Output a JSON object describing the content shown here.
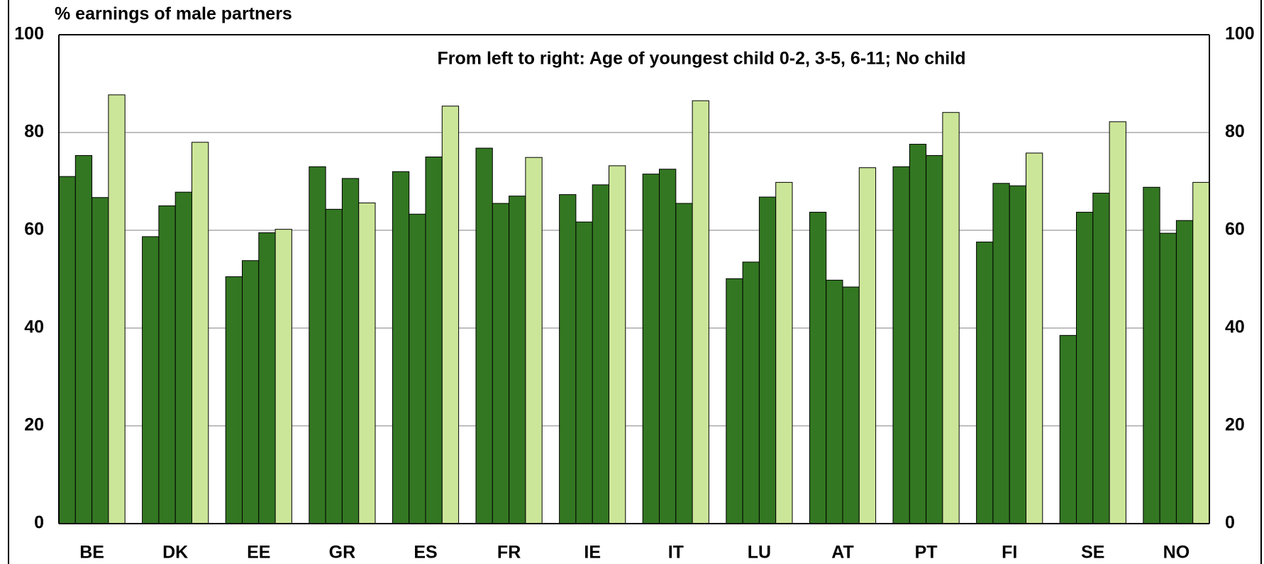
{
  "chart_data": {
    "type": "bar",
    "title": "% earnings of male partners",
    "annotation": "From left to right: Age of youngest child 0-2, 3-5, 6-11; No child",
    "categories": [
      "BE",
      "DK",
      "EE",
      "GR",
      "ES",
      "FR",
      "IE",
      "IT",
      "LU",
      "AT",
      "PT",
      "FI",
      "SE",
      "NO"
    ],
    "series": [
      {
        "color": "#337722",
        "values": [
          71,
          58.7,
          50.5,
          73,
          72,
          76.8,
          67.3,
          71.5,
          50.1,
          63.7,
          73,
          57.6,
          38.5,
          68.8
        ]
      },
      {
        "color": "#337722",
        "values": [
          75.3,
          65,
          53.8,
          64.3,
          63.3,
          65.5,
          61.7,
          72.5,
          53.5,
          49.8,
          77.6,
          69.6,
          63.7,
          59.4
        ]
      },
      {
        "color": "#337722",
        "values": [
          66.7,
          67.8,
          59.5,
          70.6,
          75,
          67,
          69.3,
          65.5,
          66.8,
          48.4,
          75.3,
          69.1,
          67.6,
          62
        ]
      },
      {
        "color": "#cce699",
        "values": [
          87.7,
          78,
          60.2,
          65.6,
          85.4,
          74.9,
          73.2,
          86.5,
          69.8,
          72.8,
          84.1,
          75.8,
          82.2,
          69.8
        ]
      }
    ],
    "ylim": [
      0,
      100
    ],
    "yticks": [
      0,
      20,
      40,
      60,
      80,
      100
    ],
    "y2lim": [
      0,
      100
    ],
    "y2ticks": [
      0,
      20,
      40,
      60,
      80,
      100
    ],
    "grid": true
  }
}
